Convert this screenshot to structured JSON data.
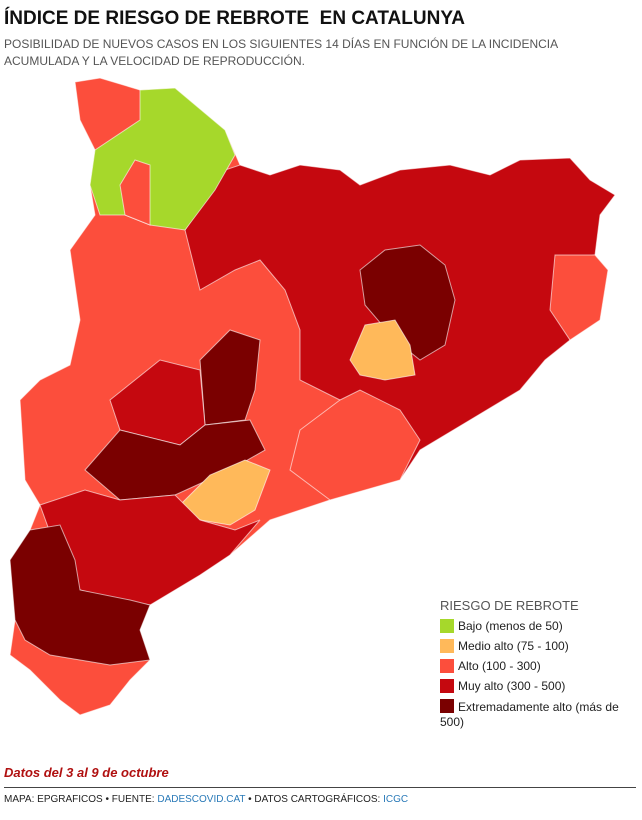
{
  "header": {
    "title": "ÍNDICE DE RIESGO DE REBROTE  EN CATALUNYA",
    "subtitle": "POSIBILIDAD DE NUEVOS CASOS EN LOS SIGUIENTES 14 DÍAS EN FUNCIÓN DE LA INCIDENCIA ACUMULADA Y LA VELOCIDAD DE REPRODUCCIÓN."
  },
  "legend": {
    "title": "RIESGO DE REBROTE",
    "items": [
      {
        "label": "Bajo (menos de 50)",
        "color": "#a6d82b"
      },
      {
        "label": "Medio alto (75 - 100)",
        "color": "#ffb95a"
      },
      {
        "label": "Alto (100 - 300)",
        "color": "#fc4e3c"
      },
      {
        "label": "Muy alto (300 - 500)",
        "color": "#c5080f"
      },
      {
        "label": "Extremadamente alto (más de 500)",
        "color": "#7a0000"
      }
    ]
  },
  "note": "Datos del 3 al 9 de octubre",
  "footer": {
    "credit": "MAPA: EPGRAFICOS • FUENTE: ",
    "source": "DADESCOVID.CAT",
    "cartography": " • DATOS CARTOGRÁFICOS: ",
    "cartography_source": "ICGC"
  }
}
